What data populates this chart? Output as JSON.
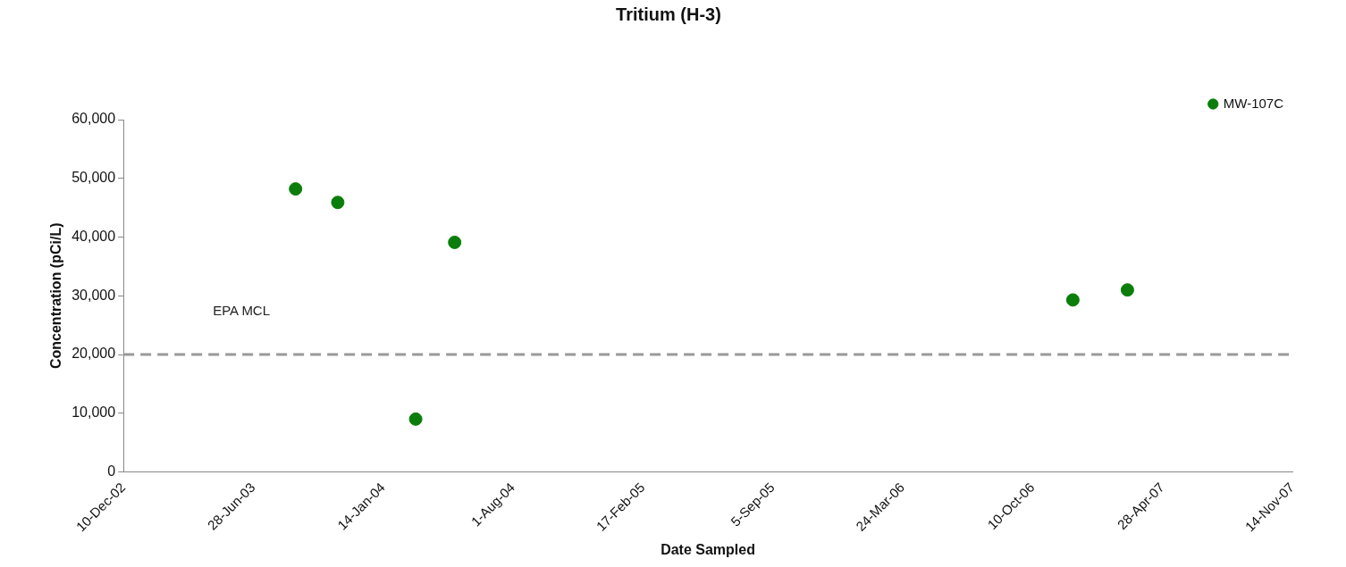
{
  "chart_data": {
    "type": "scatter",
    "title": "Tritium (H-3)",
    "xlabel": "Date Sampled",
    "ylabel": "Concentration (pCi/L)",
    "series": [
      {
        "name": "MW-107C",
        "color": "#0a7d0a",
        "x": [
          "2003-09-01",
          "2003-11-05",
          "2004-03-04",
          "2004-05-03",
          "2006-12-11",
          "2007-03-05"
        ],
        "values": [
          48200,
          45900,
          9000,
          39100,
          29300,
          31000
        ]
      }
    ],
    "xlim": [
      "2002-12-10",
      "2007-11-14"
    ],
    "xticks": [
      {
        "value": "2002-12-10",
        "label": "10-Dec-02"
      },
      {
        "value": "2003-06-28",
        "label": "28-Jun-03"
      },
      {
        "value": "2004-01-14",
        "label": "14-Jan-04"
      },
      {
        "value": "2004-08-01",
        "label": "1-Aug-04"
      },
      {
        "value": "2005-02-17",
        "label": "17-Feb-05"
      },
      {
        "value": "2005-09-05",
        "label": "5-Sep-05"
      },
      {
        "value": "2006-03-24",
        "label": "24-Mar-06"
      },
      {
        "value": "2006-10-10",
        "label": "10-Oct-06"
      },
      {
        "value": "2007-04-28",
        "label": "28-Apr-07"
      },
      {
        "value": "2007-11-14",
        "label": "14-Nov-07"
      }
    ],
    "ylim": [
      0,
      60000
    ],
    "yticks": [
      0,
      {
        "value": 10000,
        "label": "10,000"
      },
      {
        "value": 20000,
        "label": "20,000"
      },
      {
        "value": 30000,
        "label": "30,000"
      },
      {
        "value": 40000,
        "label": "40,000"
      },
      {
        "value": 50000,
        "label": "50,000"
      },
      {
        "value": 60000,
        "label": "60,000"
      }
    ],
    "ref_lines": [
      {
        "axis": "y",
        "value": 20000,
        "label": "EPA MCL",
        "color": "#999999",
        "line_style": "dashed"
      }
    ],
    "grid": false,
    "legend": "top right",
    "marker": "circle"
  }
}
